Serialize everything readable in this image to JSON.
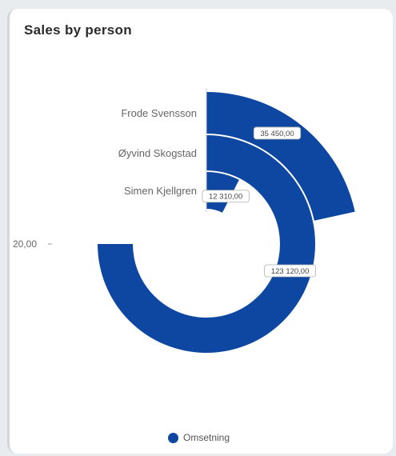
{
  "card": {
    "title": "Sales by person"
  },
  "colors": {
    "series": "#0d47a1"
  },
  "chart_data": {
    "type": "radial-bar",
    "title": "Sales by person",
    "categories": [
      "Frode Svensson",
      "Øyvind Skogstad",
      "Simen Kjellgren"
    ],
    "series": [
      {
        "name": "Omsetning",
        "values": [
          35450,
          123120,
          12310
        ]
      }
    ],
    "data_labels": [
      "35 450,00",
      "123 120,00",
      "12 310,00"
    ],
    "radial_max": 164160,
    "radial_tick_label": "20,00",
    "legend": {
      "position": "bottom",
      "entries": [
        "Omsetning"
      ]
    }
  }
}
